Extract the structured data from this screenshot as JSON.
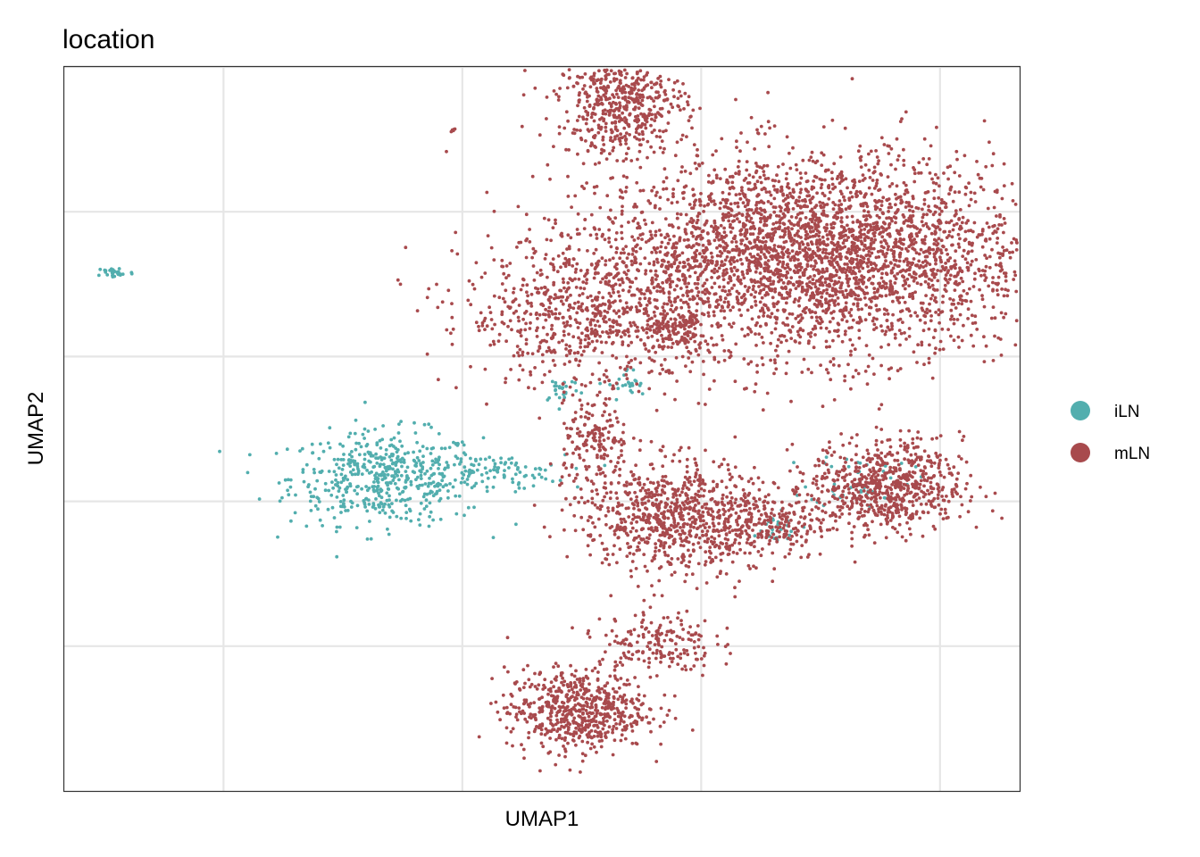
{
  "chart_data": {
    "type": "scatter",
    "title": "location",
    "xlabel": "UMAP1",
    "ylabel": "UMAP2",
    "xlim": [
      -20,
      10
    ],
    "ylim": [
      -15,
      10
    ],
    "x_gridlines": [
      -15,
      -7.5,
      0,
      7.5
    ],
    "y_gridlines": [
      -10,
      -5,
      0,
      5,
      10
    ],
    "grid": true,
    "x_tick_labels_shown": false,
    "y_tick_labels_shown": false,
    "legend_position": "right",
    "series": [
      {
        "name": "iLN",
        "color": "#52aeae",
        "clusters": [
          {
            "cx": -9.9,
            "cy": -4.2,
            "sx": 1.5,
            "sy": 0.8,
            "n": 520
          },
          {
            "cx": -6.5,
            "cy": -4.0,
            "sx": 1.1,
            "sy": 0.3,
            "n": 90
          },
          {
            "cx": -18.4,
            "cy": 2.9,
            "sx": 0.3,
            "sy": 0.1,
            "n": 30
          },
          {
            "cx": -4.4,
            "cy": -1.1,
            "sx": 0.3,
            "sy": 0.25,
            "n": 25
          },
          {
            "cx": -2.3,
            "cy": -1.0,
            "sx": 0.3,
            "sy": 0.3,
            "n": 25
          },
          {
            "cx": 5.0,
            "cy": -4.2,
            "sx": 0.8,
            "sy": 0.5,
            "n": 45
          },
          {
            "cx": 2.2,
            "cy": -6.0,
            "sx": 0.5,
            "sy": 0.3,
            "n": 25
          }
        ]
      },
      {
        "name": "mLN",
        "color": "#a84a4d",
        "clusters": [
          {
            "cx": 3.5,
            "cy": 3.5,
            "sx": 3.4,
            "sy": 1.7,
            "n": 3400
          },
          {
            "cx": -3.5,
            "cy": 1.5,
            "sx": 2.0,
            "sy": 1.3,
            "n": 700
          },
          {
            "cx": -2.5,
            "cy": 8.8,
            "sx": 1.0,
            "sy": 0.9,
            "n": 550
          },
          {
            "cx": -1.0,
            "cy": -5.5,
            "sx": 1.4,
            "sy": 1.0,
            "n": 750
          },
          {
            "cx": 5.8,
            "cy": -4.5,
            "sx": 1.2,
            "sy": 0.8,
            "n": 700
          },
          {
            "cx": 2.0,
            "cy": -5.8,
            "sx": 1.0,
            "sy": 0.6,
            "n": 250
          },
          {
            "cx": -3.9,
            "cy": -12.2,
            "sx": 1.1,
            "sy": 0.7,
            "n": 620
          },
          {
            "cx": -1.4,
            "cy": -9.9,
            "sx": 0.9,
            "sy": 0.6,
            "n": 180
          },
          {
            "cx": -3.3,
            "cy": -3.0,
            "sx": 0.5,
            "sy": 0.8,
            "n": 160
          },
          {
            "cx": -0.8,
            "cy": 0.9,
            "sx": 0.5,
            "sy": 0.4,
            "n": 120
          },
          {
            "cx": -7.8,
            "cy": 7.8,
            "sx": 0.05,
            "sy": 0.03,
            "n": 5
          }
        ]
      }
    ]
  }
}
